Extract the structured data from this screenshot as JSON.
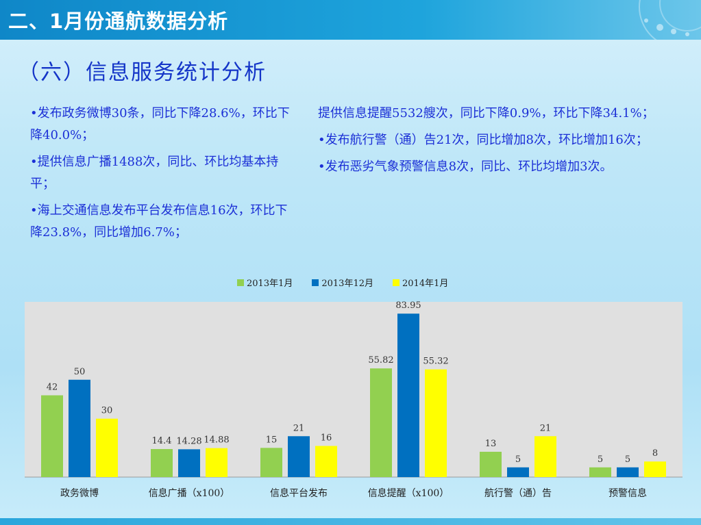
{
  "header": {
    "title": "二、1月份通航数据分析"
  },
  "subtitle": "（六）信息服务统计分析",
  "bullets_left": [
    "•发布政务微博30条，同比下降28.6%，环比下降40.0%；",
    "•提供信息广播1488次，同比、环比均基本持平；",
    "•海上交通信息发布平台发布信息16次，环比下降23.8%，同比增加6.7%；"
  ],
  "bullets_right": [
    "提供信息提醒5532艘次，同比下降0.9%，环比下降34.1%；",
    "•发布航行警（通）告21次，同比增加8次，环比增加16次；",
    "•发布恶劣气象预警信息8次，同比、环比均增加3次。"
  ],
  "colors": {
    "series_2013_1": "#92d050",
    "series_2013_12": "#0070c0",
    "series_2014_1": "#ffff00",
    "plot_bg": "#e0e0e0",
    "title_blue": "#1435c8",
    "bullet_blue": "#1b2fd6"
  },
  "chart_data": {
    "type": "bar",
    "categories": [
      "政务微博",
      "信息广播（x100）",
      "信息平台发布",
      "信息提醒（x100）",
      "航行警（通）告",
      "预警信息"
    ],
    "series": [
      {
        "name": "2013年1月",
        "values": [
          42,
          14.4,
          15,
          55.82,
          13,
          5
        ],
        "labels": [
          "42",
          "14.4",
          "15",
          "55.82",
          "13",
          "5"
        ]
      },
      {
        "name": "2013年12月",
        "values": [
          50,
          14.28,
          21,
          83.95,
          5,
          5
        ],
        "labels": [
          "50",
          "14.28",
          "21",
          "83.95",
          "5",
          "5"
        ]
      },
      {
        "name": "2014年1月",
        "values": [
          30,
          14.88,
          16,
          55.32,
          21,
          8
        ],
        "labels": [
          "30",
          "14.88",
          "16",
          "55.32",
          "21",
          "8"
        ]
      }
    ],
    "ylim": [
      0,
      90
    ],
    "grid": false,
    "legend": "top-center"
  }
}
